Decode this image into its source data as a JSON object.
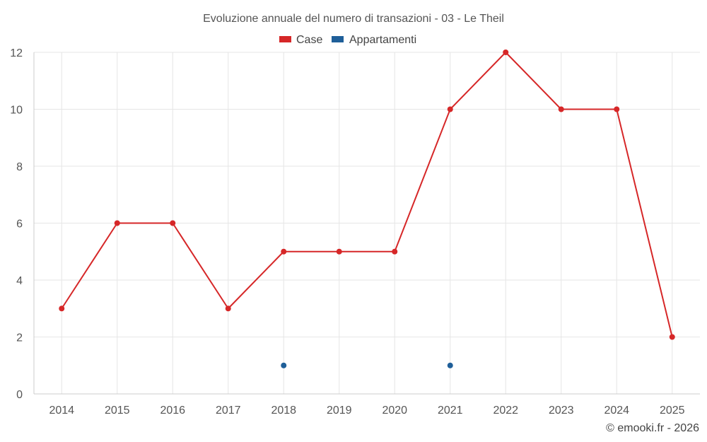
{
  "chart_data": {
    "type": "line",
    "title": "Evoluzione annuale del numero di transazioni - 03 - Le Theil",
    "categories": [
      "2014",
      "2015",
      "2016",
      "2017",
      "2018",
      "2019",
      "2020",
      "2021",
      "2022",
      "2023",
      "2024",
      "2025"
    ],
    "series": [
      {
        "name": "Case",
        "color": "#d62728",
        "values": [
          3,
          6,
          6,
          3,
          5,
          5,
          5,
          10,
          12,
          10,
          10,
          2
        ]
      },
      {
        "name": "Appartamenti",
        "color": "#1f5f99",
        "values": [
          null,
          null,
          null,
          null,
          1,
          null,
          null,
          1,
          null,
          null,
          null,
          null
        ]
      }
    ],
    "ylim": [
      0,
      12
    ],
    "yticks": [
      "0",
      "2",
      "4",
      "6",
      "8",
      "10",
      "12"
    ],
    "xlabel": "",
    "ylabel": "",
    "grid": true,
    "legend_position": "top-center"
  },
  "credit": "© emooki.fr - 2026"
}
